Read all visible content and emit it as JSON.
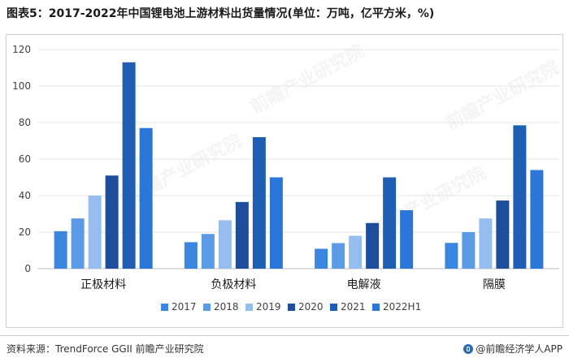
{
  "page_title": "图表5：2017-2022年中国锂电池上游材料出货量情况(单位：万吨，亿平方米，%)",
  "watermark_text": "前瞻产业研究院",
  "footer": {
    "source": "资料来源：TrendForce  GGII 前瞻产业研究院",
    "brand": "@前瞻经济学人APP"
  },
  "chart_data": {
    "type": "bar",
    "categories": [
      "正极材料",
      "负极材料",
      "电解液",
      "隔膜"
    ],
    "series": [
      {
        "name": "2017",
        "color": "#3a86e0",
        "values": [
          20.5,
          14.5,
          10.9,
          14.1
        ]
      },
      {
        "name": "2018",
        "color": "#5b9be6",
        "values": [
          27.5,
          19.0,
          14.0,
          20.0
        ]
      },
      {
        "name": "2019",
        "color": "#95bdf0",
        "values": [
          40.0,
          26.5,
          18.0,
          27.5
        ]
      },
      {
        "name": "2020",
        "color": "#1d4e9c",
        "values": [
          51.0,
          36.5,
          25.0,
          37.3
        ]
      },
      {
        "name": "2021",
        "color": "#1f5fb3",
        "values": [
          113.0,
          72.0,
          50.0,
          78.5
        ]
      },
      {
        "name": "2022H1",
        "color": "#2a77d8",
        "values": [
          77.0,
          50.0,
          32.0,
          54.0
        ]
      }
    ],
    "y_ticks": [
      0,
      20,
      40,
      60,
      80,
      100,
      120
    ],
    "ylim": [
      0,
      120
    ],
    "grid": true,
    "legend_position": "bottom-center"
  }
}
